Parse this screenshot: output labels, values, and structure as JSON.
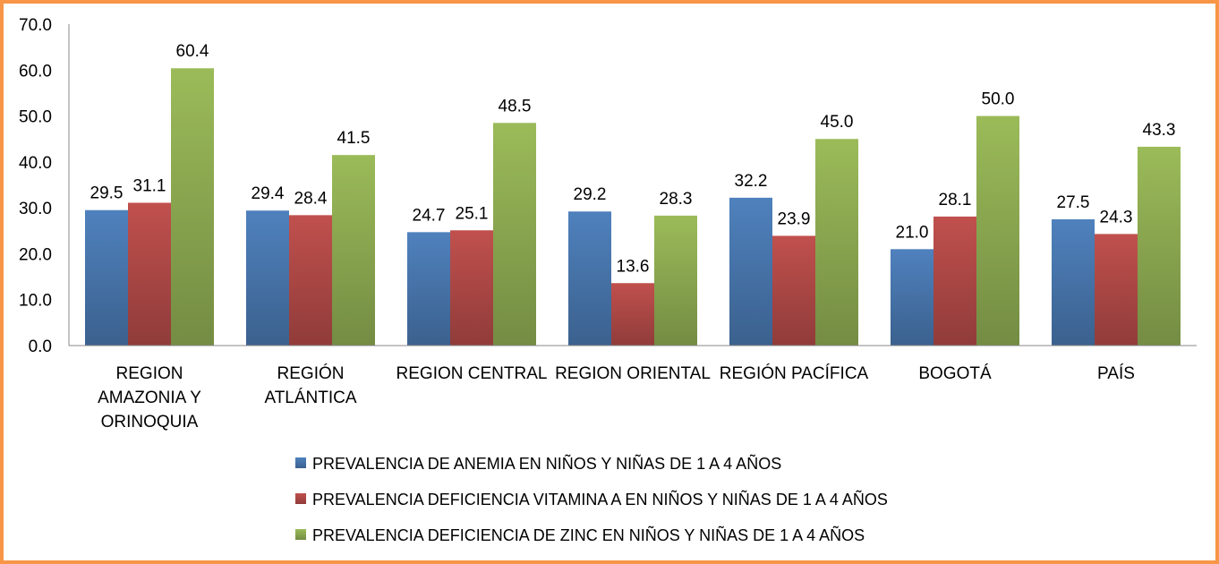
{
  "chart_data": {
    "type": "bar",
    "title": "",
    "xlabel": "",
    "ylabel": "",
    "ylim": [
      0,
      70
    ],
    "yticks": [
      "0.0",
      "10.0",
      "20.0",
      "30.0",
      "40.0",
      "50.0",
      "60.0",
      "70.0"
    ],
    "grid": false,
    "legend_placement": "bottom",
    "categories": [
      [
        "REGION",
        "AMAZONIA Y",
        "ORINOQUIA"
      ],
      [
        "REGIÓN",
        "ATLÁNTICA"
      ],
      [
        "REGION CENTRAL"
      ],
      [
        "REGION ORIENTAL"
      ],
      [
        "REGIÓN PACÍFICA"
      ],
      [
        "BOGOTÁ"
      ],
      [
        "PAÍS"
      ]
    ],
    "series": [
      {
        "name": "PREVALENCIA DE ANEMIA EN NIÑOS Y NIÑAS DE 1 A 4 AÑOS",
        "color": "#4F81BD",
        "values": [
          29.5,
          29.4,
          24.7,
          29.2,
          32.2,
          21.0,
          27.5
        ]
      },
      {
        "name": "PREVALENCIA DEFICIENCIA VITAMINA A EN NIÑOS Y NIÑAS DE 1 A 4 AÑOS",
        "color": "#C0504D",
        "values": [
          31.1,
          28.4,
          25.1,
          13.6,
          23.9,
          28.1,
          24.3
        ]
      },
      {
        "name": "PREVALENCIA DEFICIENCIA DE ZINC EN NIÑOS Y NIÑAS DE 1 A 4 AÑOS",
        "color": "#9BBB59",
        "values": [
          60.4,
          41.5,
          48.5,
          28.3,
          45.0,
          50.0,
          43.3
        ]
      }
    ],
    "border_color": "#F79646"
  }
}
